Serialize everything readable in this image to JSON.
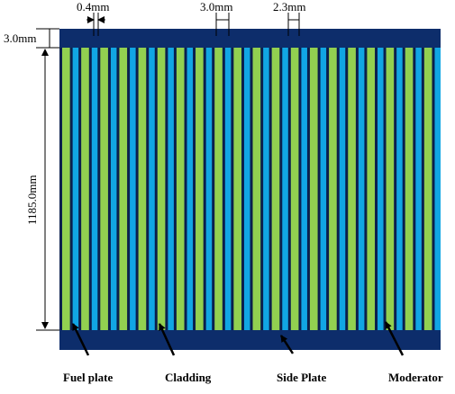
{
  "diagram": {
    "dimensions": {
      "gap_width": "0.4mm",
      "plate_width": "3.0mm",
      "moderator_width": "2.3mm",
      "side_plate_height": "3.0mm",
      "plate_length": "1185.0mm"
    },
    "legend": {
      "fuel_plate": "Fuel plate",
      "cladding": "Cladding",
      "side_plate": "Side Plate",
      "moderator": "Moderator"
    },
    "plate_count": 20,
    "colors": {
      "side_plate": "#0d2d6b",
      "fuel": "#92d050",
      "moderator": "#11a6e4",
      "cladding": "#0b1f4d",
      "dim_line": "#000000"
    }
  }
}
